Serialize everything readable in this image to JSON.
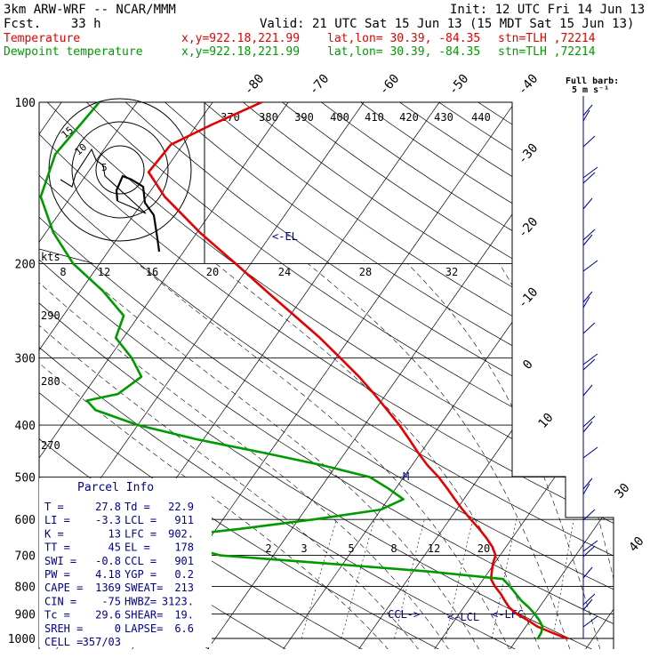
{
  "header": {
    "model": "3km ARW-WRF -- NCAR/MMM",
    "init": "Init: 12 UTC Fri 14 Jun 13",
    "fcst": "Fcst.    33 h",
    "valid": "Valid: 21 UTC Sat 15 Jun 13 (15 MDT Sat 15 Jun 13)",
    "temp_line": {
      "name": "Temperature",
      "xy": "x,y=922.18,221.99",
      "latlon": "lat,lon= 30.39, -84.35",
      "stn": "stn=TLH ,72214"
    },
    "dew_line": {
      "name": "Dewpoint temperature",
      "xy": "x,y=922.18,221.99",
      "latlon": "lat,lon= 30.39, -84.35",
      "stn": "stn=TLH ,72214"
    }
  },
  "colors": {
    "temperature": "#e60000",
    "dewpoint": "#009a00",
    "parcel_text": "#00008b",
    "grid": "#000000"
  },
  "chart_data": {
    "type": "line",
    "chart_kind": "skew-T log-p sounding",
    "y_axis": {
      "quantity": "pressure (hPa)",
      "scale": "log",
      "range": [
        1000,
        100
      ],
      "ticks": [
        1000,
        900,
        800,
        700,
        600,
        500,
        400,
        300,
        200,
        100
      ]
    },
    "isotherm_labels_deg_c": [
      -80,
      -70,
      -60,
      -50,
      -40,
      -30,
      -20,
      -10,
      0,
      10,
      30,
      40
    ],
    "theta_e_labels_k": [
      370,
      380,
      390,
      400,
      410,
      420,
      430,
      440
    ],
    "theta_labels_k": [
      290,
      280,
      270
    ],
    "mixing_ratio_labels_g_kg": [
      2,
      3,
      5,
      8,
      12,
      20
    ],
    "series": [
      {
        "name": "Temperature",
        "color": "#e60000",
        "points": [
          {
            "p": 1000,
            "t": 26.5
          },
          {
            "p": 975,
            "t": 24
          },
          {
            "p": 950,
            "t": 21.5
          },
          {
            "p": 925,
            "t": 19.7
          },
          {
            "p": 900,
            "t": 17.6
          },
          {
            "p": 875,
            "t": 16
          },
          {
            "p": 850,
            "t": 14.8
          },
          {
            "p": 825,
            "t": 13.6
          },
          {
            "p": 800,
            "t": 12.2
          },
          {
            "p": 775,
            "t": 11
          },
          {
            "p": 750,
            "t": 10.4
          },
          {
            "p": 725,
            "t": 9.8
          },
          {
            "p": 700,
            "t": 9.4
          },
          {
            "p": 675,
            "t": 8.2
          },
          {
            "p": 650,
            "t": 6.6
          },
          {
            "p": 625,
            "t": 4.8
          },
          {
            "p": 600,
            "t": 2.8
          },
          {
            "p": 575,
            "t": 0.8
          },
          {
            "p": 550,
            "t": -1.2
          },
          {
            "p": 525,
            "t": -3.2
          },
          {
            "p": 500,
            "t": -5.4
          },
          {
            "p": 475,
            "t": -8
          },
          {
            "p": 450,
            "t": -10.4
          },
          {
            "p": 425,
            "t": -12.8
          },
          {
            "p": 400,
            "t": -15.4
          },
          {
            "p": 375,
            "t": -18.4
          },
          {
            "p": 350,
            "t": -21.6
          },
          {
            "p": 325,
            "t": -25.2
          },
          {
            "p": 300,
            "t": -29.4
          },
          {
            "p": 275,
            "t": -34
          },
          {
            "p": 250,
            "t": -39.4
          },
          {
            "p": 225,
            "t": -45.4
          },
          {
            "p": 200,
            "t": -52
          },
          {
            "p": 175,
            "t": -59.6
          },
          {
            "p": 150,
            "t": -67.6
          },
          {
            "p": 135,
            "t": -72
          },
          {
            "p": 120,
            "t": -71.6
          },
          {
            "p": 110,
            "t": -68
          },
          {
            "p": 100,
            "t": -63.5
          }
        ]
      },
      {
        "name": "Dewpoint temperature",
        "color": "#009a00",
        "points": [
          {
            "p": 1000,
            "t": 22.7
          },
          {
            "p": 975,
            "t": 22.6
          },
          {
            "p": 950,
            "t": 22.2
          },
          {
            "p": 925,
            "t": 21.2
          },
          {
            "p": 900,
            "t": 20
          },
          {
            "p": 875,
            "t": 18.6
          },
          {
            "p": 850,
            "t": 17
          },
          {
            "p": 825,
            "t": 15.6
          },
          {
            "p": 800,
            "t": 14.2
          },
          {
            "p": 775,
            "t": 12.6
          },
          {
            "p": 750,
            "t": 2
          },
          {
            "p": 725,
            "t": -12
          },
          {
            "p": 700,
            "t": -27
          },
          {
            "p": 675,
            "t": -32
          },
          {
            "p": 650,
            "t": -37
          },
          {
            "p": 625,
            "t": -27
          },
          {
            "p": 600,
            "t": -18
          },
          {
            "p": 575,
            "t": -10
          },
          {
            "p": 550,
            "t": -8
          },
          {
            "p": 525,
            "t": -11
          },
          {
            "p": 500,
            "t": -14.5
          },
          {
            "p": 475,
            "t": -22
          },
          {
            "p": 450,
            "t": -31
          },
          {
            "p": 425,
            "t": -41
          },
          {
            "p": 400,
            "t": -50
          },
          {
            "p": 375,
            "t": -57
          },
          {
            "p": 360,
            "t": -59
          },
          {
            "p": 350,
            "t": -55.5
          },
          {
            "p": 325,
            "t": -54
          },
          {
            "p": 300,
            "t": -57
          },
          {
            "p": 275,
            "t": -61
          },
          {
            "p": 250,
            "t": -62
          },
          {
            "p": 225,
            "t": -67
          },
          {
            "p": 200,
            "t": -73.5
          },
          {
            "p": 175,
            "t": -79
          },
          {
            "p": 150,
            "t": -84
          },
          {
            "p": 125,
            "t": -86
          },
          {
            "p": 100,
            "t": -85
          }
        ]
      }
    ],
    "annotations": {
      "el_marker": "<-EL",
      "surface_markers": [
        "CCL->",
        "<-LCL",
        "<-LFC"
      ],
      "mid_marker": "M"
    }
  },
  "parcel_info": {
    "title": "Parcel Info",
    "rows": [
      {
        "l": "T  =",
        "v1": "27.8",
        "m": "Td =",
        "v2": "22.9"
      },
      {
        "l": "LI =",
        "v1": "-3.3",
        "m": "LCL =",
        "v2": "911"
      },
      {
        "l": "K  =",
        "v1": "13",
        "m": "LFC =",
        "v2": "902."
      },
      {
        "l": "TT =",
        "v1": "45",
        "m": "EL =",
        "v2": "178"
      },
      {
        "l": "SWI =",
        "v1": "-0.8",
        "m": "CCL =",
        "v2": "901"
      },
      {
        "l": "PW =",
        "v1": "4.18",
        "m": "YGP =",
        "v2": "0.2"
      },
      {
        "l": "CAPE =",
        "v1": "1369",
        "m": "SWEAT=",
        "v2": "213"
      },
      {
        "l": "CIN =",
        "v1": "-75",
        "m": "HWBZ=",
        "v2": "3123."
      },
      {
        "l": "Tc =",
        "v1": "29.6",
        "m": "SHEAR=",
        "v2": "19."
      },
      {
        "l": "SREH =",
        "v1": "0",
        "m": "LAPSE=",
        "v2": "6.6"
      },
      {
        "l": "CELL =",
        "v1": "357/03",
        "m": "",
        "v2": ""
      }
    ]
  },
  "hodograph": {
    "ring_labels": [
      "5",
      "10",
      "15"
    ],
    "speed_label": "kts",
    "speed_ticks": [
      "8",
      "12",
      "16",
      "20",
      "24",
      "28",
      "32"
    ]
  },
  "wind_barbs": {
    "legend_title": "Full barb:",
    "legend_unit": "5 m s⁻¹"
  }
}
